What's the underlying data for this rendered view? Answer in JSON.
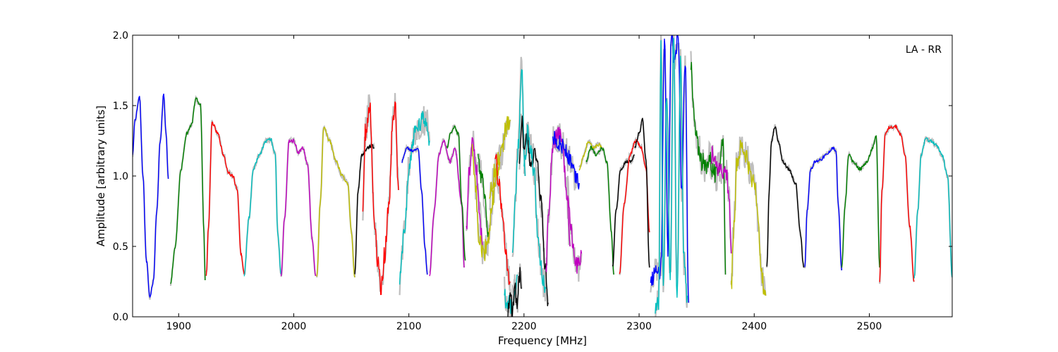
{
  "chart_data": {
    "type": "line",
    "annotation": "LA - RR",
    "xlabel": "Frequency [MHz]",
    "ylabel": "Amplitude [arbitrary units]",
    "xlim": [
      1860,
      2572
    ],
    "ylim": [
      0.0,
      2.0
    ],
    "x_ticks": [
      1900,
      2000,
      2100,
      2200,
      2300,
      2400,
      2500
    ],
    "x_tick_labels": [
      "1900",
      "2000",
      "2100",
      "2200",
      "2300",
      "2400",
      "2500"
    ],
    "y_ticks": [
      0.0,
      0.5,
      1.0,
      1.5,
      2.0
    ],
    "y_tick_labels": [
      "0.0",
      "0.5",
      "1.0",
      "1.5",
      "2.0"
    ],
    "grid": false,
    "reference_color": "#bfbfbf",
    "series": [
      {
        "color": "#0000ff",
        "x": [
          1860,
          1862,
          1866,
          1869,
          1872,
          1875,
          1878,
          1881,
          1884,
          1887,
          1889,
          1891
        ],
        "y": [
          1.15,
          1.4,
          1.56,
          1.0,
          0.4,
          0.14,
          0.25,
          0.75,
          1.25,
          1.58,
          1.3,
          0.98
        ]
      },
      {
        "color": "#008000",
        "x": [
          1893,
          1897,
          1902,
          1907,
          1911,
          1915,
          1919,
          1922,
          1923
        ],
        "y": [
          0.24,
          0.5,
          1.05,
          1.3,
          1.36,
          1.55,
          1.5,
          0.6,
          0.26
        ]
      },
      {
        "color": "#ff0000",
        "x": [
          1924,
          1926,
          1929,
          1934,
          1939,
          1943,
          1947,
          1951,
          1954,
          1957
        ],
        "y": [
          0.3,
          0.65,
          1.38,
          1.3,
          1.15,
          1.03,
          1.0,
          0.9,
          0.45,
          0.3
        ]
      },
      {
        "color": "#00bfbf",
        "x": [
          1957,
          1961,
          1965,
          1970,
          1976,
          1980,
          1984,
          1986,
          1989
        ],
        "y": [
          0.3,
          0.7,
          1.05,
          1.15,
          1.25,
          1.26,
          1.15,
          0.6,
          0.3
        ]
      },
      {
        "color": "#bf00bf",
        "x": [
          1989,
          1992,
          1996,
          2000,
          2004,
          2008,
          2012,
          2016,
          2019
        ],
        "y": [
          0.28,
          0.7,
          1.25,
          1.25,
          1.17,
          1.2,
          1.08,
          0.55,
          0.29
        ]
      },
      {
        "color": "#bfbf00",
        "x": [
          2020,
          2023,
          2026,
          2031,
          2037,
          2042,
          2047,
          2050,
          2053
        ],
        "y": [
          0.28,
          0.8,
          1.35,
          1.25,
          1.1,
          1.0,
          0.95,
          0.6,
          0.28
        ]
      },
      {
        "color": "#000000",
        "x": [
          2053,
          2056,
          2059,
          2064,
          2068,
          2070
        ],
        "y": [
          0.3,
          0.9,
          1.15,
          1.2,
          1.22,
          1.2
        ]
      },
      {
        "color": "#ff0000",
        "x": [
          2060,
          2062,
          2066,
          2070,
          2073,
          2076,
          2079,
          2083,
          2086,
          2088,
          2091
        ],
        "y": [
          0.75,
          1.3,
          1.5,
          0.7,
          0.4,
          0.2,
          0.45,
          0.85,
          1.4,
          1.5,
          0.9
        ]
      },
      {
        "color": "#00bfbf",
        "x": [
          2092,
          2096,
          2100,
          2105,
          2109,
          2113,
          2116,
          2118
        ],
        "y": [
          0.25,
          0.6,
          1.05,
          1.3,
          1.35,
          1.4,
          1.37,
          1.25
        ]
      },
      {
        "color": "#0000ff",
        "x": [
          2094,
          2098,
          2103,
          2108,
          2111,
          2114,
          2116
        ],
        "y": [
          1.1,
          1.2,
          1.18,
          1.2,
          0.9,
          0.5,
          0.3
        ]
      },
      {
        "color": "#bf00bf",
        "x": [
          2118,
          2122,
          2126,
          2130,
          2136,
          2140,
          2146,
          2148
        ],
        "y": [
          0.3,
          0.75,
          1.15,
          1.25,
          1.1,
          1.2,
          0.8,
          0.35
        ]
      },
      {
        "color": "#008000",
        "x": [
          2133,
          2136,
          2139,
          2143,
          2146,
          2149
        ],
        "y": [
          1.2,
          1.3,
          1.35,
          1.3,
          0.8,
          0.4
        ]
      },
      {
        "color": "#bf00bf",
        "x": [
          2150,
          2152,
          2155,
          2158,
          2161,
          2164
        ],
        "y": [
          0.6,
          1.0,
          1.25,
          1.1,
          0.8,
          0.5
        ]
      },
      {
        "color": "#bfbf00",
        "x": [
          2155,
          2158,
          2161,
          2165,
          2169,
          2173,
          2176,
          2179
        ],
        "y": [
          1.2,
          0.9,
          0.55,
          0.45,
          0.55,
          0.85,
          1.0,
          1.1
        ]
      },
      {
        "color": "#008000",
        "x": [
          2160,
          2163,
          2166,
          2169
        ],
        "y": [
          1.15,
          1.0,
          0.8,
          0.6
        ]
      },
      {
        "color": "#bfbf00",
        "x": [
          2170,
          2175,
          2180,
          2185,
          2188
        ],
        "y": [
          0.85,
          1.05,
          1.15,
          1.35,
          1.4
        ]
      },
      {
        "color": "#ff0000",
        "x": [
          2175,
          2178,
          2182,
          2184,
          2186,
          2188
        ],
        "y": [
          1.15,
          0.95,
          0.7,
          0.45,
          0.3,
          0.25
        ]
      },
      {
        "color": "#00bfbf",
        "x": [
          2183,
          2185,
          2187,
          2189,
          2191,
          2194
        ],
        "y": [
          0.2,
          0.05,
          0.12,
          0.06,
          0.15,
          0.3
        ]
      },
      {
        "color": "#000000",
        "x": [
          2186,
          2188,
          2190,
          2192,
          2194,
          2196,
          2198
        ],
        "y": [
          0.05,
          0.15,
          0.02,
          0.2,
          0.1,
          0.3,
          0.2
        ]
      },
      {
        "color": "#00bfbf",
        "x": [
          2190,
          2192,
          2195,
          2198,
          2201
        ],
        "y": [
          0.4,
          0.8,
          1.2,
          1.8,
          1.0
        ]
      },
      {
        "color": "#000000",
        "x": [
          2196,
          2198,
          2200,
          2203,
          2206,
          2209,
          2212,
          2215,
          2218,
          2221
        ],
        "y": [
          1.05,
          1.4,
          1.2,
          1.25,
          1.1,
          1.15,
          1.05,
          0.8,
          0.4,
          0.1
        ]
      },
      {
        "color": "#00bfbf",
        "x": [
          2200,
          2203,
          2206,
          2209,
          2212,
          2215,
          2217,
          2219
        ],
        "y": [
          1.05,
          1.3,
          1.2,
          1.0,
          0.6,
          0.35,
          0.25,
          0.2
        ]
      },
      {
        "color": "#bf00bf",
        "x": [
          2219,
          2222,
          2225,
          2229,
          2233,
          2237,
          2240
        ],
        "y": [
          0.35,
          0.8,
          1.2,
          1.3,
          1.25,
          0.9,
          0.5
        ]
      },
      {
        "color": "#0000ff",
        "x": [
          2225,
          2228,
          2232,
          2236,
          2240,
          2244,
          2248
        ],
        "y": [
          1.3,
          1.25,
          1.22,
          1.18,
          1.1,
          1.0,
          0.95
        ]
      },
      {
        "color": "#bf00bf",
        "x": [
          2238,
          2241,
          2244,
          2247,
          2250
        ],
        "y": [
          0.9,
          0.6,
          0.4,
          0.35,
          0.45
        ]
      },
      {
        "color": "#bfbf00",
        "x": [
          2248,
          2252,
          2256,
          2260,
          2265,
          2268
        ],
        "y": [
          1.05,
          1.15,
          1.25,
          1.2,
          1.22,
          1.2
        ]
      },
      {
        "color": "#008000",
        "x": [
          2254,
          2258,
          2263,
          2268,
          2272,
          2276,
          2278
        ],
        "y": [
          1.1,
          1.2,
          1.15,
          1.2,
          1.1,
          0.6,
          0.3
        ]
      },
      {
        "color": "#000000",
        "x": [
          2277,
          2280,
          2284,
          2289,
          2293,
          2296
        ],
        "y": [
          0.35,
          0.75,
          1.05,
          1.1,
          1.1,
          1.15
        ]
      },
      {
        "color": "#ff0000",
        "x": [
          2283,
          2287,
          2292,
          2297,
          2302,
          2306,
          2309
        ],
        "y": [
          0.3,
          0.8,
          1.15,
          1.25,
          1.2,
          1.05,
          0.6
        ]
      },
      {
        "color": "#000000",
        "x": [
          2296,
          2300,
          2303,
          2306,
          2309
        ],
        "y": [
          1.2,
          1.3,
          1.4,
          1.1,
          0.35
        ]
      },
      {
        "color": "#0000ff",
        "x": [
          2310,
          2313,
          2316,
          2319,
          2322,
          2325,
          2328,
          2331,
          2334,
          2337,
          2340,
          2343
        ],
        "y": [
          0.25,
          0.3,
          0.3,
          0.35,
          2.0,
          0.5,
          2.0,
          1.8,
          2.0,
          0.9,
          1.85,
          0.1
        ]
      },
      {
        "color": "#00bfbf",
        "x": [
          2314,
          2317,
          2319,
          2321,
          2324,
          2327,
          2330,
          2333,
          2336,
          2339,
          2342
        ],
        "y": [
          0.05,
          0.1,
          2.0,
          0.2,
          1.6,
          0.3,
          2.0,
          0.1,
          1.8,
          0.4,
          0.15
        ]
      },
      {
        "color": "#008000",
        "x": [
          2345,
          2347,
          2349,
          2352,
          2355,
          2358,
          2361,
          2364,
          2367,
          2370,
          2373,
          2375
        ],
        "y": [
          1.8,
          1.5,
          1.3,
          1.2,
          1.1,
          1.05,
          1.15,
          1.05,
          1.0,
          1.1,
          1.3,
          0.3
        ]
      },
      {
        "color": "#bf00bf",
        "x": [
          2363,
          2366,
          2369,
          2372,
          2375,
          2378,
          2380
        ],
        "y": [
          1.15,
          1.1,
          1.05,
          1.0,
          1.05,
          0.9,
          0.45
        ]
      },
      {
        "color": "#bfbf00",
        "x": [
          2380,
          2382,
          2385,
          2389,
          2393,
          2397,
          2401,
          2404,
          2407,
          2410
        ],
        "y": [
          0.2,
          0.6,
          1.1,
          1.2,
          1.15,
          1.0,
          0.95,
          0.6,
          0.25,
          0.15
        ]
      },
      {
        "color": "#000000",
        "x": [
          2411,
          2413,
          2415,
          2418,
          2421,
          2425,
          2430,
          2436,
          2440,
          2443
        ],
        "y": [
          0.35,
          0.9,
          1.25,
          1.35,
          1.25,
          1.1,
          1.05,
          0.95,
          0.6,
          0.35
        ]
      },
      {
        "color": "#0000ff",
        "x": [
          2444,
          2446,
          2449,
          2453,
          2458,
          2463,
          2468,
          2471,
          2473,
          2476
        ],
        "y": [
          0.35,
          0.75,
          1.05,
          1.1,
          1.12,
          1.15,
          1.2,
          1.18,
          0.8,
          0.33
        ]
      },
      {
        "color": "#008000",
        "x": [
          2476,
          2479,
          2482,
          2486,
          2492,
          2498,
          2503,
          2506,
          2509
        ],
        "y": [
          0.35,
          0.8,
          1.15,
          1.1,
          1.05,
          1.1,
          1.2,
          1.28,
          0.35
        ]
      },
      {
        "color": "#ff0000",
        "x": [
          2509,
          2511,
          2514,
          2518,
          2523,
          2527,
          2531,
          2535,
          2539
        ],
        "y": [
          0.25,
          0.9,
          1.3,
          1.35,
          1.35,
          1.3,
          1.15,
          0.65,
          0.25
        ]
      },
      {
        "color": "#00bfbf",
        "x": [
          2539,
          2542,
          2545,
          2549,
          2553,
          2558,
          2563,
          2568,
          2572
        ],
        "y": [
          0.28,
          0.75,
          1.15,
          1.26,
          1.25,
          1.22,
          1.15,
          1.0,
          0.28
        ]
      }
    ]
  }
}
